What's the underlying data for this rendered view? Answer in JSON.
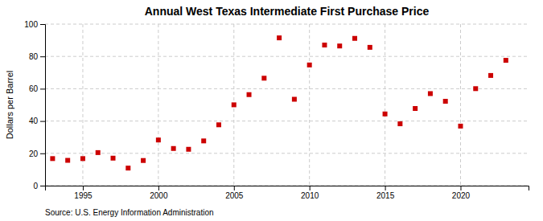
{
  "chart_data": {
    "type": "scatter",
    "title": "Annual West Texas Intermediate First Purchase Price",
    "ylabel": "Dollars per Barrel",
    "source": "Source: U.S. Energy Information Administration",
    "x": [
      1993,
      1994,
      1995,
      1996,
      1997,
      1998,
      1999,
      2000,
      2001,
      2002,
      2003,
      2004,
      2005,
      2006,
      2007,
      2008,
      2009,
      2010,
      2011,
      2012,
      2013,
      2014,
      2015,
      2016,
      2017,
      2018,
      2019,
      2020,
      2021,
      2022,
      2023
    ],
    "values": [
      16.75,
      15.66,
      16.75,
      20.46,
      17.02,
      10.87,
      15.56,
      28.26,
      23.0,
      22.51,
      27.69,
      37.66,
      50.04,
      56.35,
      66.52,
      91.48,
      53.48,
      74.71,
      87.04,
      86.46,
      91.17,
      85.62,
      44.39,
      38.29,
      47.76,
      56.98,
      52.23,
      36.86,
      60.05,
      68.21,
      77.58
    ],
    "color": "#cc0000",
    "marker": "square",
    "xlim": [
      1992.5,
      2024.5
    ],
    "xticks": [
      1995,
      2000,
      2005,
      2010,
      2015,
      2020
    ],
    "ylim": [
      0,
      100
    ],
    "yticks": [
      0,
      20,
      40,
      60,
      80,
      100
    ],
    "grid": true
  }
}
